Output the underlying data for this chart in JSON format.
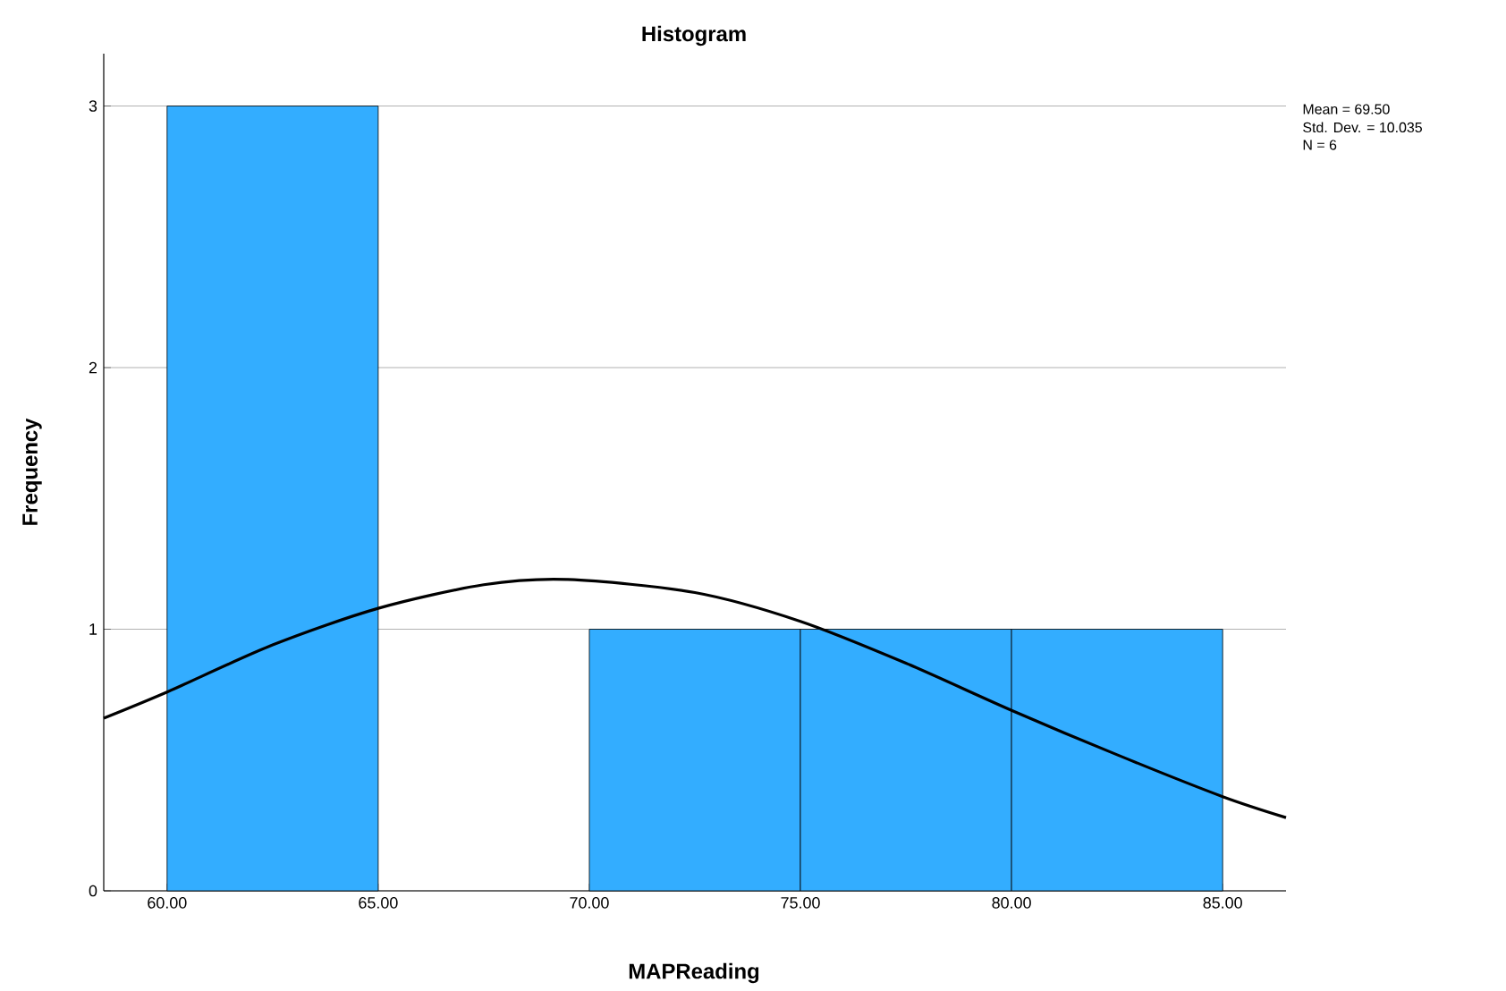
{
  "chart_data": {
    "type": "histogram",
    "title": "Histogram",
    "xlabel": "MAPReading",
    "ylabel": "Frequency",
    "annotations": [
      "Mean = 69.50",
      "Std. Dev. = 10.035",
      "N = 6"
    ],
    "xlim": [
      58.5,
      86.5
    ],
    "ylim": [
      0,
      3.2
    ],
    "xticks": [
      {
        "value": 60,
        "label": "60.00"
      },
      {
        "value": 65,
        "label": "65.00"
      },
      {
        "value": 70,
        "label": "70.00"
      },
      {
        "value": 75,
        "label": "75.00"
      },
      {
        "value": 80,
        "label": "80.00"
      },
      {
        "value": 85,
        "label": "85.00"
      }
    ],
    "yticks": [
      0,
      1,
      2,
      3
    ],
    "grid": "y",
    "series": [
      {
        "color": "#33adff",
        "bins": [
          60,
          65,
          70,
          75,
          80,
          85
        ],
        "values": [
          3,
          0,
          1,
          1,
          1
        ]
      },
      {
        "type": "line",
        "color": "#000000",
        "x": [
          58.5,
          60,
          62.5,
          65,
          67.5,
          69.5,
          72.5,
          75,
          77.5,
          80,
          82.5,
          85,
          86.5
        ],
        "values": [
          0.66,
          0.76,
          0.94,
          1.08,
          1.17,
          1.19,
          1.14,
          1.03,
          0.87,
          0.69,
          0.52,
          0.36,
          0.28
        ]
      }
    ]
  }
}
